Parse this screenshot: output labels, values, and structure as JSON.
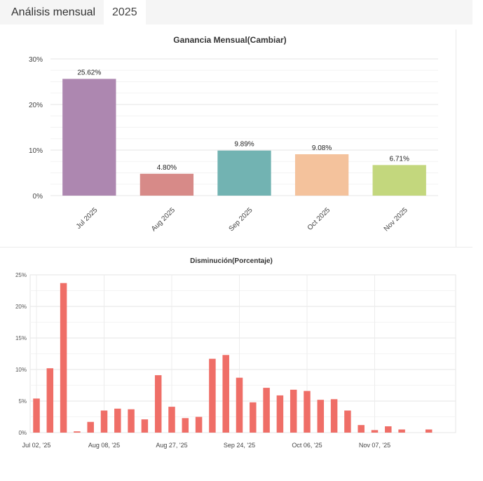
{
  "tabs": [
    {
      "label": "Análisis mensual"
    },
    {
      "label": "2025"
    }
  ],
  "chart_data": [
    {
      "type": "bar",
      "title": "Ganancia Mensual(Cambiar)",
      "categories": [
        "Jul 2025",
        "Aug 2025",
        "Sep 2025",
        "Oct 2025",
        "Nov 2025"
      ],
      "values": [
        25.62,
        4.8,
        9.89,
        9.08,
        6.71
      ],
      "value_labels": [
        "25.62%",
        "4.80%",
        "9.89%",
        "9.08%",
        "6.71%"
      ],
      "colors": [
        "#ad87b0",
        "#d78a88",
        "#72b3b2",
        "#f4c29c",
        "#c3d77d"
      ],
      "yticks": [
        "0%",
        "10%",
        "20%",
        "30%"
      ],
      "ylim": [
        0,
        30
      ],
      "xlabel": "",
      "ylabel": ""
    },
    {
      "type": "bar",
      "title": "Disminución(Porcentaje)",
      "values": [
        5.4,
        10.2,
        23.7,
        0.2,
        1.7,
        3.5,
        3.8,
        3.7,
        2.1,
        9.1,
        4.1,
        2.3,
        2.5,
        11.7,
        12.3,
        8.7,
        4.8,
        7.1,
        5.9,
        6.8,
        6.6,
        5.2,
        5.3,
        3.5,
        1.2,
        0.4,
        1.0,
        0.5,
        0.0,
        0.5
      ],
      "color": "#ef6e67",
      "x_tick_labels": [
        "Jul 02, '25",
        "Aug 08, '25",
        "Aug 27, '25",
        "Sep 24, '25",
        "Oct 06, '25",
        "Nov 07, '25"
      ],
      "yticks": [
        "0%",
        "5%",
        "10%",
        "15%",
        "20%",
        "25%"
      ],
      "ylim": [
        0,
        25
      ],
      "xlabel": "",
      "ylabel": ""
    }
  ]
}
